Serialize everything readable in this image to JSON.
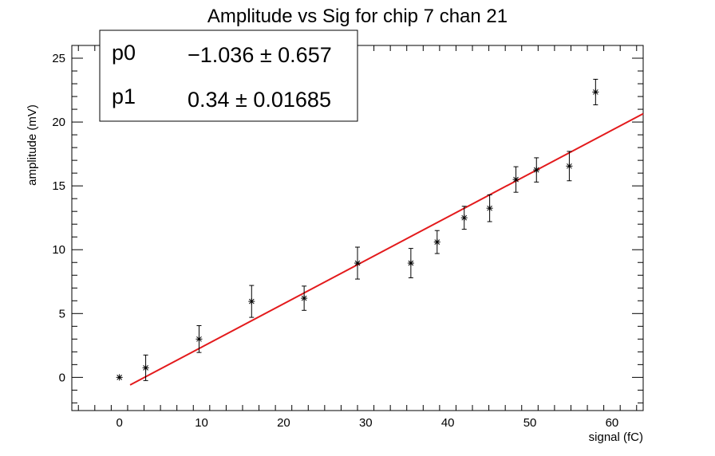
{
  "chart_data": {
    "type": "scatter",
    "title": "Amplitude vs Sig for chip 7 chan 21",
    "xlabel": "signal (fC)",
    "ylabel": "amplitude (mV)",
    "xlim": [
      -5.8,
      63.8
    ],
    "ylim": [
      -2.6,
      26.0
    ],
    "xticks": [
      0,
      10,
      20,
      30,
      40,
      50,
      60
    ],
    "yticks": [
      0,
      5,
      10,
      15,
      20,
      25
    ],
    "grid": false,
    "points": [
      {
        "x": 0.0,
        "y": 0.0,
        "err": 0.0
      },
      {
        "x": 3.2,
        "y": 0.75,
        "err": 1.0
      },
      {
        "x": 9.7,
        "y": 3.0,
        "err": 1.05
      },
      {
        "x": 16.1,
        "y": 5.95,
        "err": 1.25
      },
      {
        "x": 22.5,
        "y": 6.2,
        "err": 0.95
      },
      {
        "x": 29.0,
        "y": 8.95,
        "err": 1.25
      },
      {
        "x": 35.5,
        "y": 8.95,
        "err": 1.15
      },
      {
        "x": 38.7,
        "y": 10.6,
        "err": 0.9
      },
      {
        "x": 42.0,
        "y": 12.5,
        "err": 0.9
      },
      {
        "x": 45.1,
        "y": 13.25,
        "err": 1.05
      },
      {
        "x": 48.3,
        "y": 15.5,
        "err": 1.0
      },
      {
        "x": 50.8,
        "y": 16.25,
        "err": 0.95
      },
      {
        "x": 54.8,
        "y": 16.55,
        "err": 1.15
      },
      {
        "x": 58.0,
        "y": 22.35,
        "err": 1.0
      }
    ],
    "fit": {
      "p0": -1.036,
      "p1": 0.34,
      "x_range": [
        1.3,
        63.8
      ],
      "color": "#e31a1c"
    },
    "stats_box": {
      "position": "top-left",
      "rows": [
        {
          "name": "p0",
          "value": "−1.036 ± 0.657"
        },
        {
          "name": "p1",
          "value": "0.34 ± 0.01685"
        }
      ]
    }
  }
}
